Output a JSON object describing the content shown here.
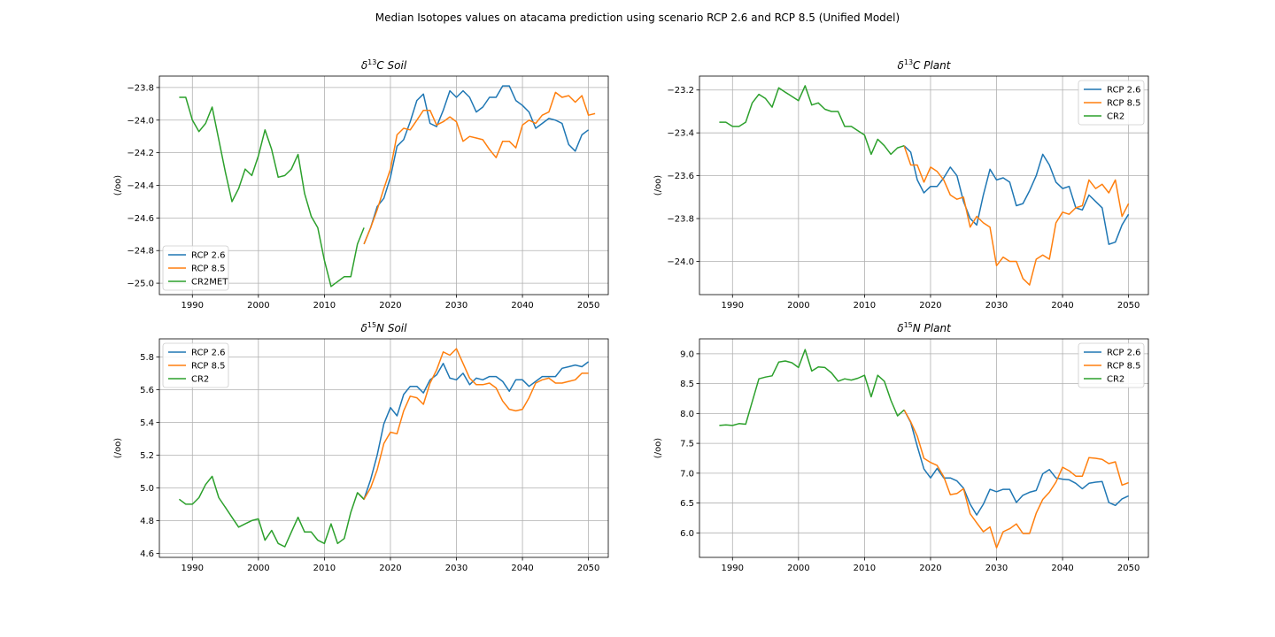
{
  "figure": {
    "title": "Median Isotopes values on atacama prediction using scenario RCP 2.6 and RCP 8.5 (Unified Model)"
  },
  "colors": {
    "rcp26": "#1f77b4",
    "rcp85": "#ff7f0e",
    "obs": "#2ca02c",
    "grid": "#b0b0b0"
  },
  "chart_data": [
    {
      "type": "line",
      "title_prefix": "δ",
      "title_sup": "13",
      "title_rest": "C Soil",
      "ylabel": "(/oo)",
      "xlim": [
        1985,
        2053
      ],
      "ylim": [
        -25.07,
        -23.73
      ],
      "xticks": [
        1990,
        2000,
        2010,
        2020,
        2030,
        2040,
        2050
      ],
      "xtick_labels": [
        "1990",
        "2000",
        "2010",
        "2020",
        "2030",
        "2040",
        "2050"
      ],
      "yticks": [
        -25.0,
        -24.8,
        -24.6,
        -24.4,
        -24.2,
        -24.0,
        -23.8
      ],
      "ytick_labels": [
        "−25.0",
        "−24.8",
        "−24.6",
        "−24.4",
        "−24.2",
        "−24.0",
        "−23.8"
      ],
      "grid": true,
      "legend_position": "lower left",
      "series": [
        {
          "name": "RCP 2.6",
          "color": "#1f77b4",
          "x_start": 2016,
          "values": [
            -24.76,
            -24.66,
            -24.53,
            -24.48,
            -24.35,
            -24.16,
            -24.12,
            -24.01,
            -23.88,
            -23.84,
            -24.02,
            -24.04,
            -23.94,
            -23.82,
            -23.86,
            -23.82,
            -23.86,
            -23.95,
            -23.92,
            -23.86,
            -23.86,
            -23.79,
            -23.79,
            -23.88,
            -23.91,
            -23.95,
            -24.05,
            -24.02,
            -23.99,
            -24.0,
            -24.02,
            -24.15,
            -24.19,
            -24.09,
            -24.06
          ]
        },
        {
          "name": "RCP 8.5",
          "color": "#ff7f0e",
          "x_start": 2016,
          "values": [
            -24.76,
            -24.66,
            -24.55,
            -24.42,
            -24.3,
            -24.09,
            -24.05,
            -24.06,
            -24.0,
            -23.94,
            -23.94,
            -24.03,
            -24.01,
            -23.98,
            -24.01,
            -24.13,
            -24.1,
            -24.11,
            -24.12,
            -24.18,
            -24.23,
            -24.13,
            -24.13,
            -24.17,
            -24.03,
            -24.0,
            -24.02,
            -23.97,
            -23.95,
            -23.83,
            -23.86,
            -23.85,
            -23.89,
            -23.85,
            -23.97,
            -23.96
          ]
        },
        {
          "name": "CR2MET",
          "color": "#2ca02c",
          "x_start": 1988,
          "values": [
            -23.86,
            -23.86,
            -24.0,
            -24.07,
            -24.02,
            -23.92,
            -24.12,
            -24.32,
            -24.5,
            -24.42,
            -24.3,
            -24.34,
            -24.22,
            -24.06,
            -24.18,
            -24.35,
            -24.34,
            -24.3,
            -24.21,
            -24.45,
            -24.59,
            -24.66,
            -24.86,
            -25.02,
            -24.99,
            -24.96,
            -24.96,
            -24.76,
            -24.66
          ]
        }
      ]
    },
    {
      "type": "line",
      "title_prefix": "δ",
      "title_sup": "13",
      "title_rest": "C Plant",
      "ylabel": "(/oo)",
      "xlim": [
        1985,
        2053
      ],
      "ylim": [
        -24.155,
        -23.135
      ],
      "xticks": [
        1990,
        2000,
        2010,
        2020,
        2030,
        2040,
        2050
      ],
      "xtick_labels": [
        "1990",
        "2000",
        "2010",
        "2020",
        "2030",
        "2040",
        "2050"
      ],
      "yticks": [
        -24.0,
        -23.8,
        -23.6,
        -23.4,
        -23.2
      ],
      "ytick_labels": [
        "−24.0",
        "−23.8",
        "−23.6",
        "−23.4",
        "−23.2"
      ],
      "grid": true,
      "legend_position": "upper right",
      "series": [
        {
          "name": "RCP 2.6",
          "color": "#1f77b4",
          "x_start": 2016,
          "values": [
            -23.46,
            -23.49,
            -23.62,
            -23.68,
            -23.65,
            -23.65,
            -23.61,
            -23.56,
            -23.6,
            -23.72,
            -23.8,
            -23.83,
            -23.69,
            -23.57,
            -23.62,
            -23.61,
            -23.63,
            -23.74,
            -23.73,
            -23.67,
            -23.6,
            -23.5,
            -23.55,
            -23.63,
            -23.66,
            -23.65,
            -23.75,
            -23.76,
            -23.69,
            -23.72,
            -23.75,
            -23.92,
            -23.91,
            -23.83,
            -23.78
          ]
        },
        {
          "name": "RCP 8.5",
          "color": "#ff7f0e",
          "x_start": 2016,
          "values": [
            -23.46,
            -23.55,
            -23.55,
            -23.63,
            -23.56,
            -23.58,
            -23.62,
            -23.69,
            -23.71,
            -23.7,
            -23.84,
            -23.79,
            -23.82,
            -23.84,
            -24.02,
            -23.98,
            -24.0,
            -24.0,
            -24.08,
            -24.11,
            -23.99,
            -23.97,
            -23.99,
            -23.82,
            -23.77,
            -23.78,
            -23.75,
            -23.74,
            -23.62,
            -23.66,
            -23.64,
            -23.68,
            -23.62,
            -23.79,
            -23.73
          ]
        },
        {
          "name": "CR2",
          "color": "#2ca02c",
          "x_start": 1988,
          "values": [
            -23.35,
            -23.35,
            -23.37,
            -23.37,
            -23.35,
            -23.26,
            -23.22,
            -23.24,
            -23.28,
            -23.19,
            -23.21,
            -23.23,
            -23.25,
            -23.18,
            -23.27,
            -23.26,
            -23.29,
            -23.3,
            -23.3,
            -23.37,
            -23.37,
            -23.39,
            -23.41,
            -23.5,
            -23.43,
            -23.46,
            -23.5,
            -23.47,
            -23.46
          ]
        }
      ]
    },
    {
      "type": "line",
      "title_prefix": "δ",
      "title_sup": "15",
      "title_rest": "N Soil",
      "ylabel": "(/oo)",
      "xlim": [
        1985,
        2053
      ],
      "ylim": [
        4.575,
        5.91
      ],
      "xticks": [
        1990,
        2000,
        2010,
        2020,
        2030,
        2040,
        2050
      ],
      "xtick_labels": [
        "1990",
        "2000",
        "2010",
        "2020",
        "2030",
        "2040",
        "2050"
      ],
      "yticks": [
        4.6,
        4.8,
        5.0,
        5.2,
        5.4,
        5.6,
        5.8
      ],
      "ytick_labels": [
        "4.6",
        "4.8",
        "5.0",
        "5.2",
        "5.4",
        "5.6",
        "5.8"
      ],
      "grid": true,
      "legend_position": "upper left",
      "series": [
        {
          "name": "RCP 2.6",
          "color": "#1f77b4",
          "x_start": 2015,
          "values": [
            4.97,
            4.93,
            5.05,
            5.2,
            5.39,
            5.49,
            5.44,
            5.57,
            5.62,
            5.62,
            5.58,
            5.66,
            5.69,
            5.76,
            5.67,
            5.66,
            5.7,
            5.63,
            5.67,
            5.66,
            5.68,
            5.68,
            5.65,
            5.59,
            5.66,
            5.66,
            5.62,
            5.65,
            5.68,
            5.68,
            5.68,
            5.73,
            5.74,
            5.75,
            5.74,
            5.77
          ]
        },
        {
          "name": "RCP 8.5",
          "color": "#ff7f0e",
          "x_start": 2015,
          "values": [
            4.97,
            4.93,
            5.0,
            5.11,
            5.27,
            5.34,
            5.33,
            5.47,
            5.56,
            5.55,
            5.51,
            5.64,
            5.72,
            5.83,
            5.81,
            5.85,
            5.76,
            5.67,
            5.63,
            5.63,
            5.64,
            5.61,
            5.53,
            5.48,
            5.47,
            5.48,
            5.55,
            5.64,
            5.66,
            5.67,
            5.64,
            5.64,
            5.65,
            5.66,
            5.7,
            5.7
          ]
        },
        {
          "name": "CR2",
          "color": "#2ca02c",
          "x_start": 1988,
          "values": [
            4.93,
            4.9,
            4.9,
            4.94,
            5.02,
            5.07,
            4.94,
            4.88,
            4.82,
            4.76,
            4.78,
            4.8,
            4.81,
            4.68,
            4.74,
            4.66,
            4.64,
            4.73,
            4.82,
            4.73,
            4.73,
            4.68,
            4.66,
            4.78,
            4.66,
            4.69,
            4.85,
            4.97,
            4.93
          ]
        }
      ]
    },
    {
      "type": "line",
      "title_prefix": "δ",
      "title_sup": "15",
      "title_rest": "N Plant",
      "ylabel": "(/oo)",
      "xlim": [
        1985,
        2053
      ],
      "ylim": [
        5.59,
        9.25
      ],
      "xticks": [
        1990,
        2000,
        2010,
        2020,
        2030,
        2040,
        2050
      ],
      "xtick_labels": [
        "1990",
        "2000",
        "2010",
        "2020",
        "2030",
        "2040",
        "2050"
      ],
      "yticks": [
        6.0,
        6.5,
        7.0,
        7.5,
        8.0,
        8.5,
        9.0
      ],
      "ytick_labels": [
        "6.0",
        "6.5",
        "7.0",
        "7.5",
        "8.0",
        "8.5",
        "9.0"
      ],
      "grid": true,
      "legend_position": "upper right",
      "series": [
        {
          "name": "RCP 2.6",
          "color": "#1f77b4",
          "x_start": 2016,
          "values": [
            8.06,
            7.85,
            7.45,
            7.07,
            6.92,
            7.08,
            6.92,
            6.92,
            6.87,
            6.75,
            6.48,
            6.3,
            6.48,
            6.73,
            6.69,
            6.73,
            6.73,
            6.51,
            6.63,
            6.68,
            6.71,
            6.99,
            7.06,
            6.92,
            6.9,
            6.89,
            6.83,
            6.74,
            6.83,
            6.85,
            6.86,
            6.51,
            6.46,
            6.57,
            6.62
          ]
        },
        {
          "name": "RCP 8.5",
          "color": "#ff7f0e",
          "x_start": 2016,
          "values": [
            8.06,
            7.86,
            7.62,
            7.25,
            7.18,
            7.13,
            6.94,
            6.64,
            6.66,
            6.74,
            6.32,
            6.17,
            6.02,
            6.1,
            5.75,
            6.02,
            6.07,
            6.15,
            5.99,
            5.99,
            6.33,
            6.56,
            6.68,
            6.85,
            7.1,
            7.04,
            6.95,
            6.95,
            7.26,
            7.25,
            7.23,
            7.16,
            7.19,
            6.8,
            6.84
          ]
        },
        {
          "name": "CR2",
          "color": "#2ca02c",
          "x_start": 1988,
          "values": [
            7.8,
            7.81,
            7.8,
            7.83,
            7.82,
            8.2,
            8.58,
            8.61,
            8.63,
            8.86,
            8.88,
            8.85,
            8.77,
            9.07,
            8.71,
            8.78,
            8.77,
            8.68,
            8.54,
            8.58,
            8.56,
            8.59,
            8.64,
            8.28,
            8.64,
            8.54,
            8.22,
            7.96,
            8.06
          ]
        }
      ]
    }
  ]
}
